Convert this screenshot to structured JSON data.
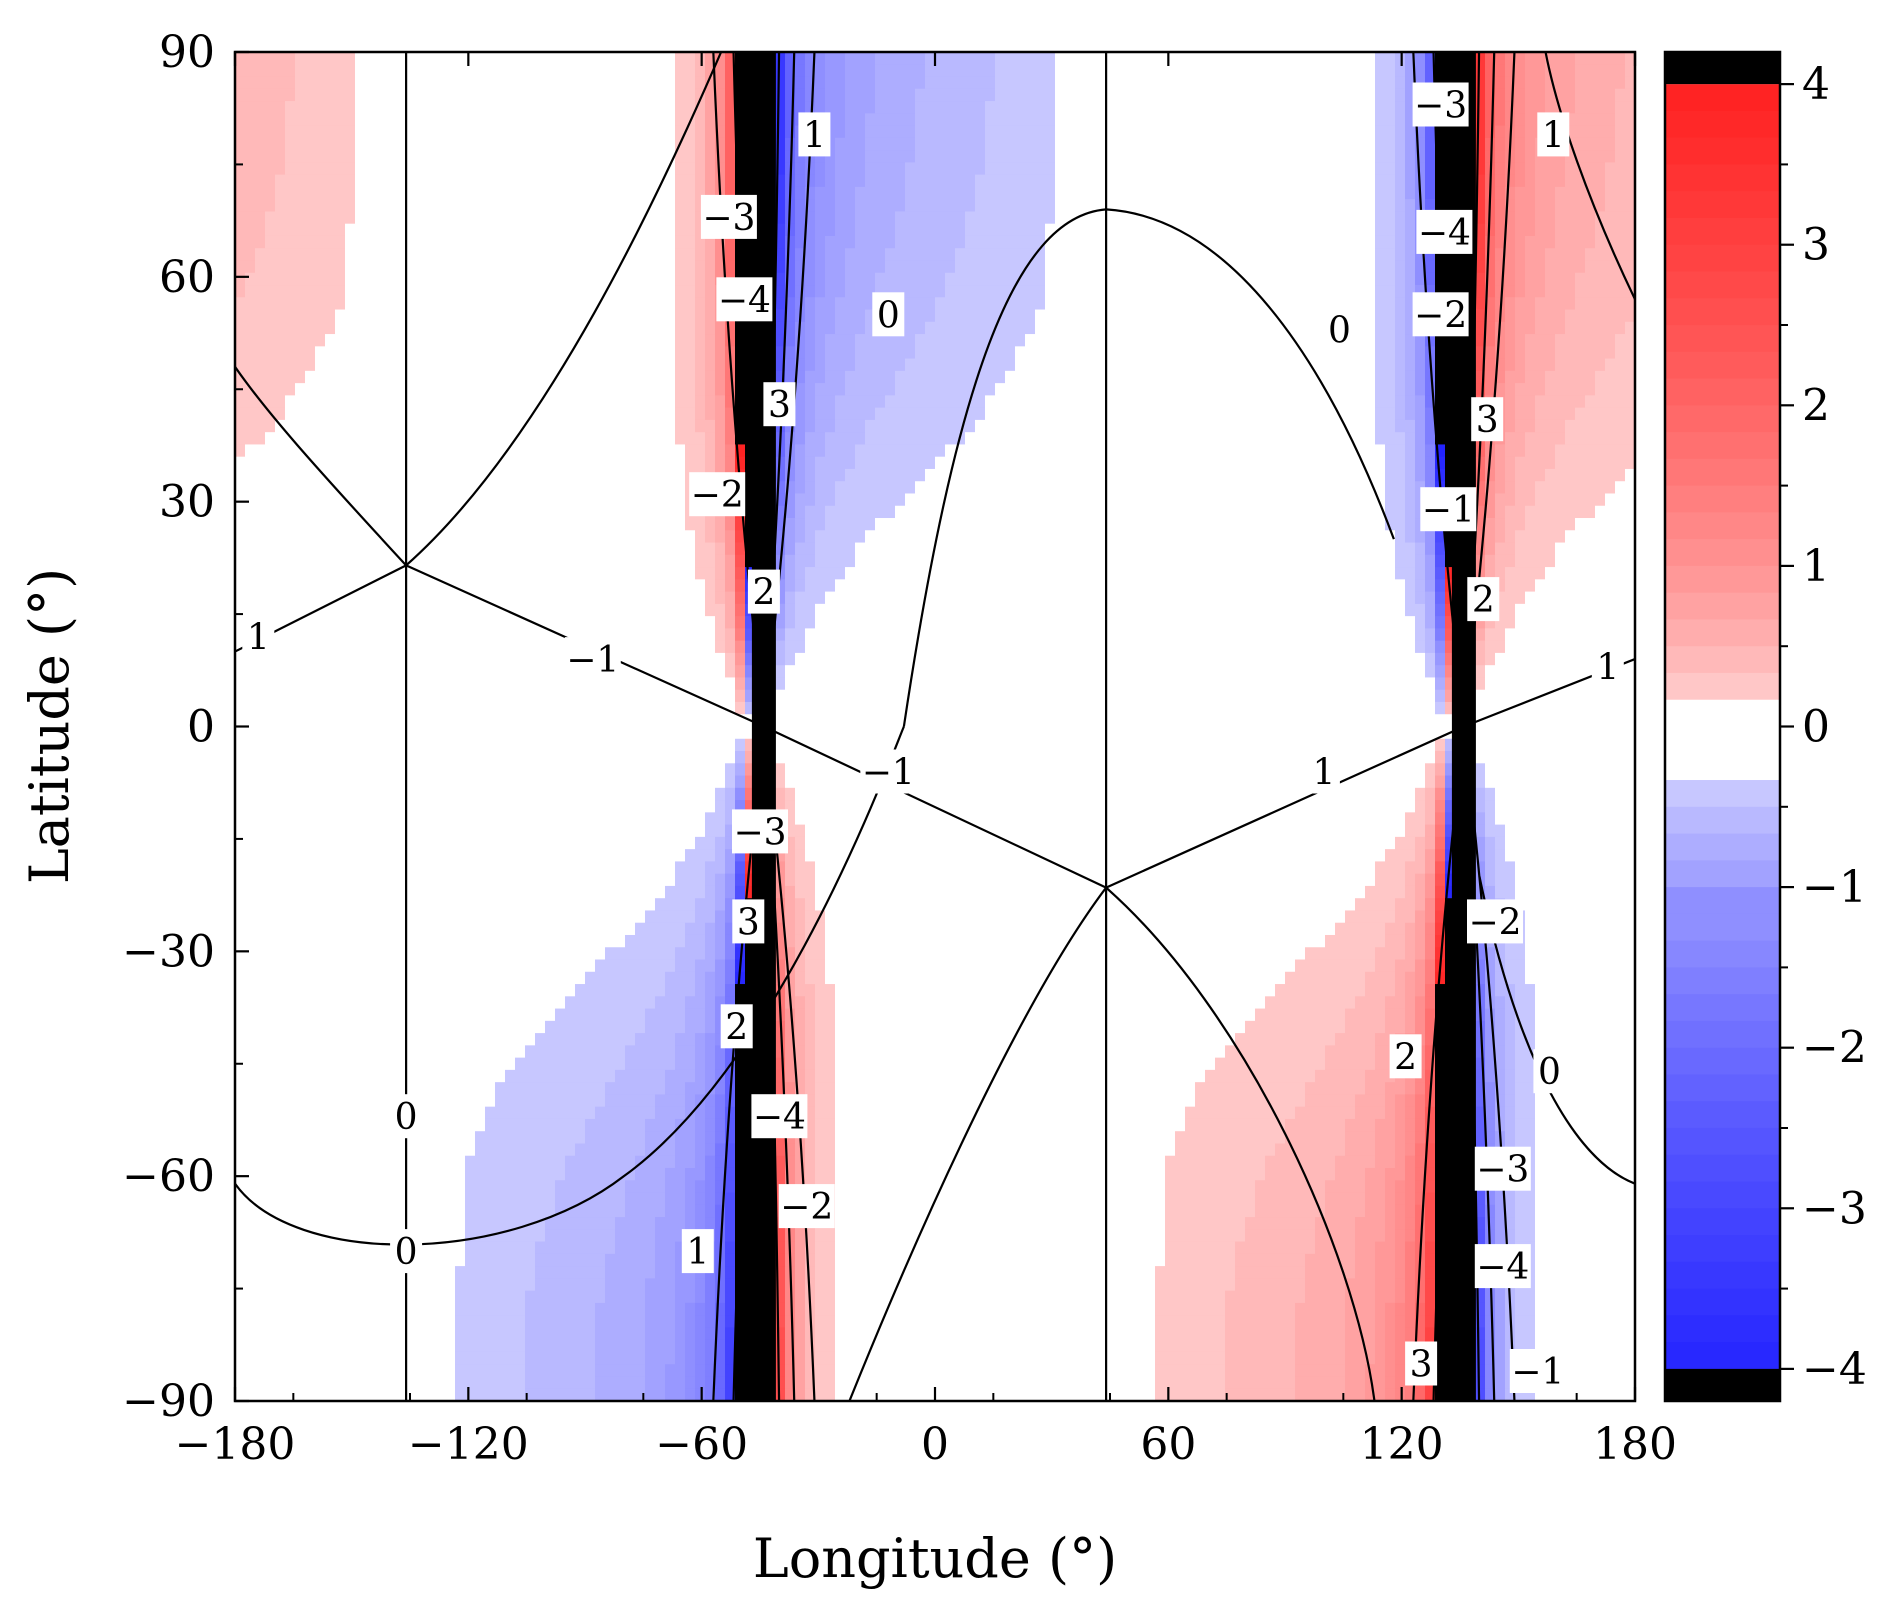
{
  "chart_data": {
    "type": "heatmap",
    "subtype": "filled-contour",
    "xlabel": "Longitude (°)",
    "ylabel": "Latitude (°)",
    "xlim": [
      -180,
      180
    ],
    "ylim": [
      -90,
      90
    ],
    "x_ticks": [
      -180,
      -120,
      -60,
      0,
      60,
      120,
      180
    ],
    "x_tick_labels": [
      "−180",
      "−120",
      "−60",
      "0",
      "60",
      "120",
      "180"
    ],
    "y_ticks": [
      90,
      60,
      30,
      0,
      -30,
      -60,
      -90
    ],
    "y_tick_labels": [
      "90",
      "60",
      "30",
      "0",
      "−30",
      "−60",
      "−90"
    ],
    "colorbar": {
      "range": [
        -4.2,
        4.2
      ],
      "ticks": [
        4,
        3,
        2,
        1,
        0,
        -1,
        -2,
        -3,
        -4
      ],
      "tick_labels": [
        "4",
        "3",
        "2",
        "1",
        "0",
        "−1",
        "−2",
        "−3",
        "−4"
      ],
      "colors": {
        "max": "#ff0000",
        "mid": "#ffffff",
        "min": "#0000ff",
        "overflow": "#000000"
      }
    },
    "singular_longitudes": [
      -44,
      136
    ],
    "zero_meridians": [
      -136,
      44
    ],
    "saddle_points": [
      {
        "lon": -136,
        "lat": 21.5
      },
      {
        "lon": 44,
        "lat": -21.5
      }
    ],
    "contour_levels": [
      -4,
      -3,
      -2,
      -1,
      0,
      1,
      2,
      3,
      4
    ],
    "contour_labels": [
      {
        "text": "1",
        "lon": 159,
        "lat": 79
      },
      {
        "text": "−3",
        "lon": -53,
        "lat": 68
      },
      {
        "text": "−4",
        "lon": -49,
        "lat": 57
      },
      {
        "text": "0",
        "lon": -12,
        "lat": 55
      },
      {
        "text": "3",
        "lon": -40,
        "lat": 43
      },
      {
        "text": "−2",
        "lon": -56,
        "lat": 31
      },
      {
        "text": "2",
        "lon": -44,
        "lat": 18
      },
      {
        "text": "1",
        "lon": -174,
        "lat": 12
      },
      {
        "text": "−1",
        "lon": -88,
        "lat": 9
      },
      {
        "text": "−1",
        "lon": -12,
        "lat": -6
      },
      {
        "text": "−3",
        "lon": -45,
        "lat": -14
      },
      {
        "text": "3",
        "lon": -48,
        "lat": -26
      },
      {
        "text": "2",
        "lon": -51,
        "lat": -40
      },
      {
        "text": "0",
        "lon": -136,
        "lat": -52
      },
      {
        "text": "−4",
        "lon": -40,
        "lat": -52
      },
      {
        "text": "−2",
        "lon": -33,
        "lat": -64
      },
      {
        "text": "0",
        "lon": -136,
        "lat": -70
      },
      {
        "text": "1",
        "lon": -61,
        "lat": -70
      },
      {
        "text": "−3",
        "lon": 130,
        "lat": 83
      },
      {
        "text": "1",
        "lon": -31,
        "lat": 79
      },
      {
        "text": "−4",
        "lon": 131,
        "lat": 66
      },
      {
        "text": "−2",
        "lon": 130,
        "lat": 55
      },
      {
        "text": "0",
        "lon": 104,
        "lat": 53
      },
      {
        "text": "3",
        "lon": 142,
        "lat": 41
      },
      {
        "text": "−1",
        "lon": 132,
        "lat": 29
      },
      {
        "text": "2",
        "lon": 141,
        "lat": 17
      },
      {
        "text": "1",
        "lon": 173,
        "lat": 8
      },
      {
        "text": "1",
        "lon": 100,
        "lat": -6
      },
      {
        "text": "−2",
        "lon": 144,
        "lat": -26
      },
      {
        "text": "2",
        "lon": 121,
        "lat": -44
      },
      {
        "text": "0",
        "lon": 158,
        "lat": -46
      },
      {
        "text": "−3",
        "lon": 146,
        "lat": -59
      },
      {
        "text": "−4",
        "lon": 146,
        "lat": -72
      },
      {
        "text": "3",
        "lon": 125,
        "lat": -85
      },
      {
        "text": "−1",
        "lon": 155,
        "lat": -86
      }
    ]
  }
}
